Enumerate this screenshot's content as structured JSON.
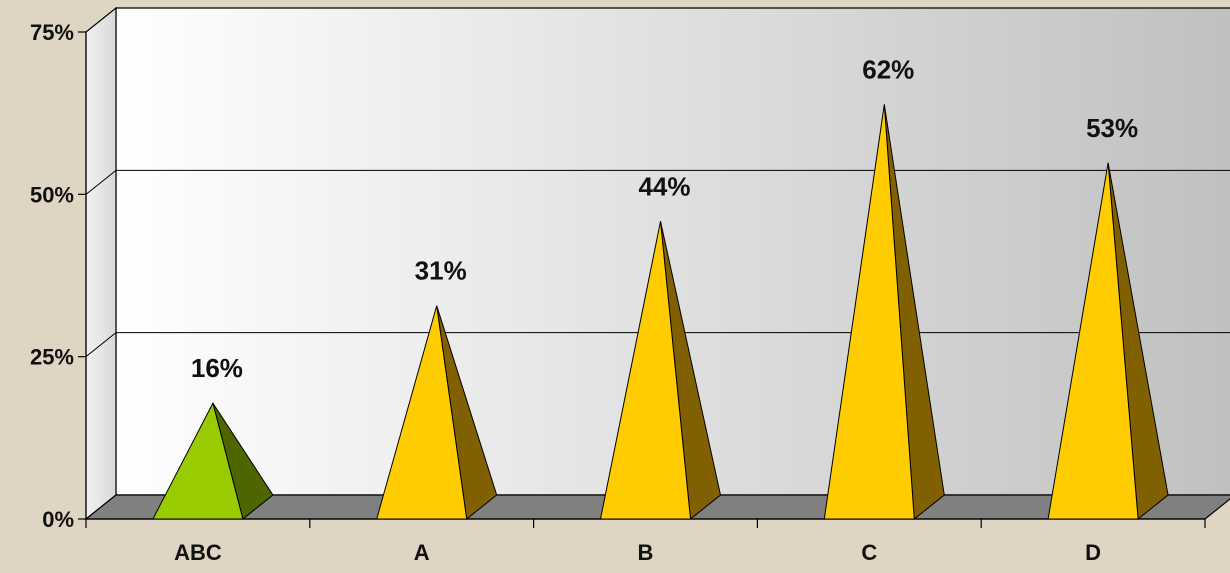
{
  "chart_data": {
    "type": "bar",
    "shape": "pyramid-3d",
    "categories": [
      "ABC",
      "A",
      "B",
      "C",
      "D"
    ],
    "values": [
      16,
      31,
      44,
      62,
      53
    ],
    "data_labels": [
      "16%",
      "31%",
      "44%",
      "62%",
      "53%"
    ],
    "ylim": [
      0,
      75
    ],
    "yticks": [
      0,
      25,
      50,
      75
    ],
    "ytick_labels": [
      "0%",
      "25%",
      "50%",
      "75%"
    ],
    "grid": true,
    "title": "",
    "xlabel": "",
    "ylabel": "",
    "colors": {
      "highlight_front": "#99cc00",
      "highlight_side": "#4d6600",
      "front": "#ffcc00",
      "side": "#806000",
      "background": "#ded6c2",
      "wall_left": "#ffffff",
      "wall_right": "#c0c0c0",
      "floor": "#808080"
    },
    "highlight_index": 0
  }
}
